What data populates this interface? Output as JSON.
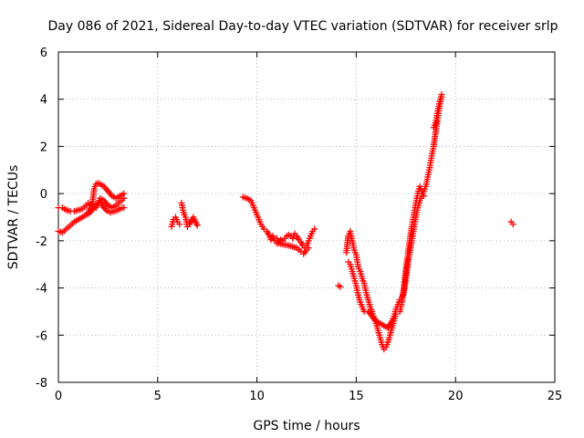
{
  "chart_data": {
    "type": "scatter",
    "title": "Day 086 of 2021, Sidereal Day-to-day VTEC variation (SDTVAR) for receiver srlp",
    "xlabel": "GPS time / hours",
    "ylabel": "SDTVAR / TECUs",
    "xlim": [
      0,
      25
    ],
    "ylim": [
      -8,
      6
    ],
    "xticks": [
      0,
      5,
      10,
      15,
      20,
      25
    ],
    "yticks": [
      -8,
      -6,
      -4,
      -2,
      0,
      2,
      4,
      6
    ],
    "xtick_labels": [
      "0",
      "5",
      "10",
      "15",
      "20",
      "25"
    ],
    "ytick_labels": [
      "-8",
      "-6",
      "-4",
      "-2",
      "0",
      "2",
      "4",
      "6"
    ],
    "grid": true,
    "marker": "plus",
    "color": "#ff0000",
    "series": [
      {
        "name": "SDTVAR",
        "segments": [
          [
            [
              0.0,
              -0.6
            ],
            [
              0.2,
              -0.6
            ],
            [
              0.4,
              -0.7
            ],
            [
              0.6,
              -0.75
            ],
            [
              0.8,
              -0.75
            ],
            [
              1.0,
              -0.7
            ],
            [
              1.2,
              -0.65
            ],
            [
              1.4,
              -0.5
            ],
            [
              1.5,
              -0.4
            ],
            [
              1.7,
              -0.5
            ],
            [
              1.9,
              -0.6
            ],
            [
              2.0,
              -0.4
            ],
            [
              2.1,
              -0.3
            ],
            [
              2.2,
              -0.5
            ],
            [
              2.4,
              -0.7
            ],
            [
              2.6,
              -0.8
            ],
            [
              2.8,
              -0.75
            ],
            [
              3.0,
              -0.7
            ],
            [
              3.2,
              -0.6
            ],
            [
              3.3,
              -0.6
            ]
          ],
          [
            [
              0.0,
              -1.6
            ],
            [
              0.2,
              -1.65
            ],
            [
              0.4,
              -1.5
            ],
            [
              0.6,
              -1.35
            ],
            [
              0.8,
              -1.2
            ],
            [
              1.0,
              -1.1
            ],
            [
              1.2,
              -1.0
            ],
            [
              1.4,
              -0.9
            ],
            [
              1.6,
              -0.8
            ],
            [
              1.8,
              -0.6
            ],
            [
              2.0,
              -0.4
            ],
            [
              2.1,
              -0.2
            ],
            [
              2.3,
              -0.3
            ],
            [
              2.5,
              -0.5
            ],
            [
              2.7,
              -0.6
            ],
            [
              2.9,
              -0.5
            ],
            [
              3.1,
              -0.35
            ],
            [
              3.3,
              -0.2
            ]
          ],
          [
            [
              1.5,
              -0.8
            ],
            [
              1.7,
              -0.5
            ],
            [
              1.8,
              0.2
            ],
            [
              1.9,
              0.4
            ],
            [
              2.0,
              0.45
            ],
            [
              2.1,
              0.4
            ],
            [
              2.3,
              0.3
            ],
            [
              2.5,
              0.1
            ],
            [
              2.7,
              -0.1
            ],
            [
              2.9,
              -0.2
            ],
            [
              3.1,
              -0.1
            ],
            [
              3.3,
              0.0
            ]
          ],
          [
            [
              5.7,
              -1.4
            ],
            [
              5.8,
              -1.1
            ],
            [
              5.9,
              -1.0
            ],
            [
              6.0,
              -1.2
            ],
            [
              6.1,
              -1.3
            ]
          ],
          [
            [
              6.2,
              -0.4
            ],
            [
              6.3,
              -0.8
            ],
            [
              6.4,
              -1.0
            ],
            [
              6.5,
              -1.4
            ],
            [
              6.6,
              -1.3
            ],
            [
              6.7,
              -1.15
            ],
            [
              6.8,
              -1.0
            ],
            [
              6.9,
              -1.2
            ],
            [
              7.0,
              -1.35
            ]
          ],
          [
            [
              9.3,
              -0.15
            ],
            [
              9.5,
              -0.2
            ],
            [
              9.7,
              -0.3
            ],
            [
              9.8,
              -0.5
            ],
            [
              9.9,
              -0.7
            ],
            [
              10.0,
              -0.9
            ],
            [
              10.1,
              -1.1
            ],
            [
              10.2,
              -1.3
            ],
            [
              10.35,
              -1.5
            ],
            [
              10.5,
              -1.6
            ],
            [
              10.6,
              -1.75
            ],
            [
              10.7,
              -1.95
            ],
            [
              10.8,
              -1.8
            ],
            [
              10.9,
              -2.0
            ],
            [
              11.0,
              -1.9
            ],
            [
              11.1,
              -2.1
            ],
            [
              11.2,
              -1.95
            ],
            [
              11.3,
              -2.0
            ],
            [
              11.4,
              -1.9
            ],
            [
              11.5,
              -1.8
            ],
            [
              11.6,
              -1.75
            ],
            [
              11.7,
              -1.8
            ],
            [
              11.8,
              -1.9
            ],
            [
              11.9,
              -1.7
            ],
            [
              12.0,
              -1.8
            ],
            [
              12.1,
              -1.95
            ],
            [
              12.2,
              -2.05
            ],
            [
              12.3,
              -2.2
            ],
            [
              12.4,
              -2.3
            ],
            [
              12.5,
              -2.2
            ],
            [
              12.6,
              -2.0
            ],
            [
              12.7,
              -1.8
            ],
            [
              12.8,
              -1.6
            ],
            [
              12.9,
              -1.5
            ]
          ],
          [
            [
              11.0,
              -2.1
            ],
            [
              11.3,
              -2.15
            ],
            [
              11.6,
              -2.2
            ],
            [
              11.8,
              -2.25
            ],
            [
              12.0,
              -2.3
            ],
            [
              12.2,
              -2.45
            ],
            [
              12.35,
              -2.55
            ],
            [
              12.5,
              -2.4
            ],
            [
              12.6,
              -2.3
            ]
          ],
          [
            [
              14.1,
              -3.9
            ],
            [
              14.2,
              -3.95
            ]
          ],
          [
            [
              14.5,
              -2.5
            ],
            [
              14.6,
              -1.8
            ],
            [
              14.7,
              -1.6
            ],
            [
              14.8,
              -2.0
            ],
            [
              14.9,
              -2.4
            ],
            [
              15.0,
              -2.6
            ],
            [
              15.1,
              -3.1
            ],
            [
              15.2,
              -3.3
            ],
            [
              15.3,
              -3.6
            ],
            [
              15.4,
              -3.8
            ],
            [
              15.5,
              -4.2
            ],
            [
              15.6,
              -4.5
            ],
            [
              15.7,
              -4.8
            ],
            [
              15.8,
              -5.0
            ],
            [
              15.9,
              -5.3
            ],
            [
              16.0,
              -5.5
            ],
            [
              16.1,
              -5.8
            ],
            [
              16.2,
              -6.1
            ],
            [
              16.3,
              -6.4
            ],
            [
              16.4,
              -6.6
            ],
            [
              16.5,
              -6.5
            ],
            [
              16.6,
              -6.3
            ],
            [
              16.7,
              -6.0
            ],
            [
              16.8,
              -5.7
            ],
            [
              16.9,
              -5.4
            ],
            [
              17.0,
              -5.1
            ]
          ],
          [
            [
              14.6,
              -2.9
            ],
            [
              14.7,
              -3.0
            ],
            [
              14.8,
              -3.3
            ],
            [
              14.9,
              -3.6
            ],
            [
              15.0,
              -3.9
            ],
            [
              15.1,
              -4.3
            ],
            [
              15.2,
              -4.6
            ],
            [
              15.3,
              -4.8
            ],
            [
              15.4,
              -5.0
            ],
            [
              15.6,
              -5.0
            ],
            [
              15.8,
              -5.2
            ],
            [
              16.0,
              -5.4
            ],
            [
              16.2,
              -5.5
            ],
            [
              16.4,
              -5.6
            ],
            [
              16.6,
              -5.7
            ],
            [
              16.8,
              -5.4
            ],
            [
              16.9,
              -5.2
            ],
            [
              17.0,
              -4.9
            ],
            [
              17.1,
              -4.7
            ],
            [
              17.2,
              -4.5
            ],
            [
              17.3,
              -4.4
            ],
            [
              17.4,
              -4.2
            ],
            [
              17.5,
              -3.6
            ],
            [
              17.6,
              -3.0
            ],
            [
              17.7,
              -2.5
            ],
            [
              17.8,
              -2.0
            ],
            [
              17.9,
              -1.5
            ],
            [
              18.0,
              -1.0
            ],
            [
              18.1,
              -0.6
            ],
            [
              18.2,
              -0.3
            ],
            [
              18.3,
              -0.1
            ],
            [
              18.4,
              0.1
            ],
            [
              18.5,
              0.3
            ],
            [
              18.6,
              0.7
            ],
            [
              18.7,
              1.1
            ],
            [
              18.8,
              1.6
            ],
            [
              18.9,
              2.0
            ],
            [
              19.0,
              2.6
            ],
            [
              19.1,
              3.2
            ],
            [
              19.2,
              3.7
            ],
            [
              19.3,
              4.1
            ]
          ],
          [
            [
              17.2,
              -5.0
            ],
            [
              17.3,
              -4.6
            ],
            [
              17.4,
              -4.0
            ],
            [
              17.5,
              -3.2
            ],
            [
              17.6,
              -2.6
            ],
            [
              17.7,
              -2.0
            ],
            [
              17.8,
              -1.4
            ],
            [
              17.9,
              -0.9
            ],
            [
              18.0,
              -0.4
            ],
            [
              18.1,
              0.0
            ],
            [
              18.2,
              0.3
            ],
            [
              18.3,
              0.1
            ],
            [
              18.4,
              -0.1
            ]
          ],
          [
            [
              18.9,
              2.8
            ],
            [
              19.0,
              3.0
            ],
            [
              19.1,
              3.5
            ],
            [
              19.2,
              3.9
            ],
            [
              19.3,
              4.2
            ]
          ],
          [
            [
              22.8,
              -1.2
            ],
            [
              22.9,
              -1.3
            ]
          ]
        ]
      }
    ]
  }
}
